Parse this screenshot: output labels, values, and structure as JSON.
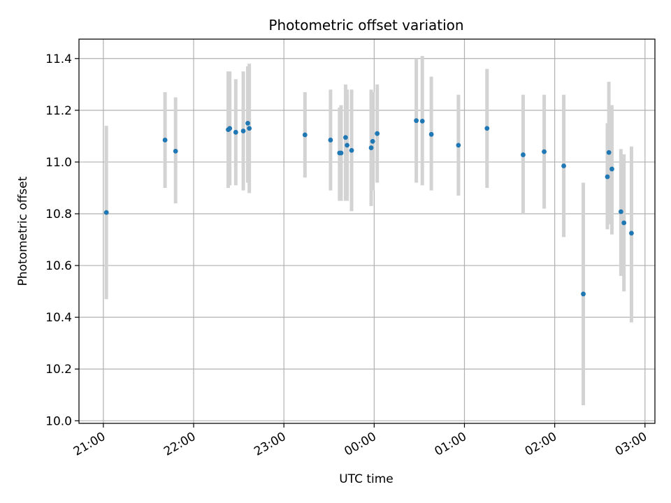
{
  "chart_data": {
    "type": "scatter",
    "title": "Photometric offset variation",
    "xlabel": "UTC time",
    "ylabel": "Photometric offset",
    "x_ticks": [
      "21:00",
      "22:00",
      "23:00",
      "00:00",
      "01:00",
      "02:00",
      "03:00"
    ],
    "x_tick_times_h": [
      21,
      22,
      23,
      24,
      25,
      26,
      27
    ],
    "y_ticks": [
      "10.0",
      "10.2",
      "10.4",
      "10.6",
      "10.8",
      "11.0",
      "11.2",
      "11.4"
    ],
    "xlim_h": [
      20.73,
      27.11
    ],
    "ylim": [
      9.99,
      11.475
    ],
    "grid": true,
    "colors": {
      "point": "#1f77b4",
      "errorbar": "#d3d3d3",
      "grid": "#b0b0b0"
    },
    "points": [
      {
        "t": "21:02",
        "y": 10.805,
        "lo": 10.47,
        "hi": 11.14
      },
      {
        "t": "21:41",
        "y": 11.085,
        "lo": 10.9,
        "hi": 11.27
      },
      {
        "t": "21:48",
        "y": 11.042,
        "lo": 10.84,
        "hi": 11.25
      },
      {
        "t": "22:23",
        "y": 11.125,
        "lo": 10.9,
        "hi": 11.35
      },
      {
        "t": "22:24",
        "y": 11.13,
        "lo": 10.91,
        "hi": 11.35
      },
      {
        "t": "22:28",
        "y": 11.115,
        "lo": 10.91,
        "hi": 11.32
      },
      {
        "t": "22:33",
        "y": 11.12,
        "lo": 10.89,
        "hi": 11.35
      },
      {
        "t": "22:36",
        "y": 11.15,
        "lo": 10.92,
        "hi": 11.37
      },
      {
        "t": "22:37",
        "y": 11.13,
        "lo": 10.88,
        "hi": 11.38
      },
      {
        "t": "23:14",
        "y": 11.105,
        "lo": 10.94,
        "hi": 11.27
      },
      {
        "t": "23:31",
        "y": 11.085,
        "lo": 10.89,
        "hi": 11.28
      },
      {
        "t": "23:37",
        "y": 11.035,
        "lo": 10.85,
        "hi": 11.21
      },
      {
        "t": "23:38",
        "y": 11.035,
        "lo": 10.85,
        "hi": 11.22
      },
      {
        "t": "23:41",
        "y": 11.095,
        "lo": 10.85,
        "hi": 11.3
      },
      {
        "t": "23:42",
        "y": 11.065,
        "lo": 10.85,
        "hi": 11.28
      },
      {
        "t": "23:45",
        "y": 11.045,
        "lo": 10.81,
        "hi": 11.28
      },
      {
        "t": "23:58",
        "y": 11.055,
        "lo": 10.83,
        "hi": 11.28
      },
      {
        "t": "23:59",
        "y": 11.08,
        "lo": 10.89,
        "hi": 11.27
      },
      {
        "t": "00:02",
        "y": 11.11,
        "lo": 10.92,
        "hi": 11.3
      },
      {
        "t": "00:28",
        "y": 11.16,
        "lo": 10.92,
        "hi": 11.4
      },
      {
        "t": "00:32",
        "y": 11.158,
        "lo": 10.91,
        "hi": 11.41
      },
      {
        "t": "00:38",
        "y": 11.107,
        "lo": 10.89,
        "hi": 11.33
      },
      {
        "t": "00:56",
        "y": 11.065,
        "lo": 10.87,
        "hi": 11.26
      },
      {
        "t": "01:15",
        "y": 11.13,
        "lo": 10.9,
        "hi": 11.36
      },
      {
        "t": "01:39",
        "y": 11.028,
        "lo": 10.8,
        "hi": 11.26
      },
      {
        "t": "01:53",
        "y": 11.04,
        "lo": 10.82,
        "hi": 11.26
      },
      {
        "t": "02:06",
        "y": 10.985,
        "lo": 10.71,
        "hi": 11.26
      },
      {
        "t": "02:19",
        "y": 10.49,
        "lo": 10.06,
        "hi": 10.92
      },
      {
        "t": "02:35",
        "y": 10.943,
        "lo": 10.74,
        "hi": 11.15
      },
      {
        "t": "02:36",
        "y": 11.037,
        "lo": 10.76,
        "hi": 11.31
      },
      {
        "t": "02:38",
        "y": 10.973,
        "lo": 10.72,
        "hi": 11.22
      },
      {
        "t": "02:44",
        "y": 10.808,
        "lo": 10.56,
        "hi": 11.05
      },
      {
        "t": "02:46",
        "y": 10.765,
        "lo": 10.5,
        "hi": 11.03
      },
      {
        "t": "02:51",
        "y": 10.725,
        "lo": 10.38,
        "hi": 11.06
      }
    ]
  }
}
